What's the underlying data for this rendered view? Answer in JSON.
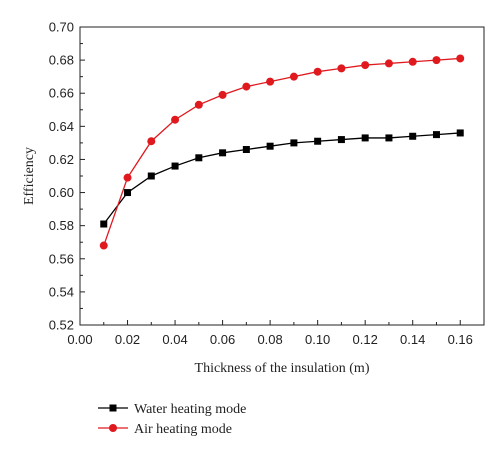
{
  "chart_data": {
    "type": "line",
    "title": "",
    "xlabel": "Thickness of the insulation (m)",
    "ylabel": "Efficiency",
    "xlim": [
      0.0,
      0.17
    ],
    "ylim": [
      0.52,
      0.7
    ],
    "x_ticks": [
      "0.00",
      "0.02",
      "0.04",
      "0.06",
      "0.08",
      "0.10",
      "0.12",
      "0.14",
      "0.16"
    ],
    "y_ticks": [
      "0.52",
      "0.54",
      "0.56",
      "0.58",
      "0.60",
      "0.62",
      "0.64",
      "0.66",
      "0.68",
      "0.70"
    ],
    "grid": false,
    "legend_position": "bottom",
    "x": [
      0.01,
      0.02,
      0.03,
      0.04,
      0.05,
      0.06,
      0.07,
      0.08,
      0.09,
      0.1,
      0.11,
      0.12,
      0.13,
      0.14,
      0.15,
      0.16
    ],
    "series": [
      {
        "name": "Water heating mode",
        "color": "#000000",
        "marker": "square",
        "values": [
          0.581,
          0.6,
          0.61,
          0.616,
          0.621,
          0.624,
          0.626,
          0.628,
          0.63,
          0.631,
          0.632,
          0.633,
          0.633,
          0.634,
          0.635,
          0.636
        ]
      },
      {
        "name": "Air heating mode",
        "color": "#e0191f",
        "marker": "circle",
        "values": [
          0.568,
          0.609,
          0.631,
          0.644,
          0.653,
          0.659,
          0.664,
          0.667,
          0.67,
          0.673,
          0.675,
          0.677,
          0.678,
          0.679,
          0.68,
          0.681
        ]
      }
    ]
  }
}
